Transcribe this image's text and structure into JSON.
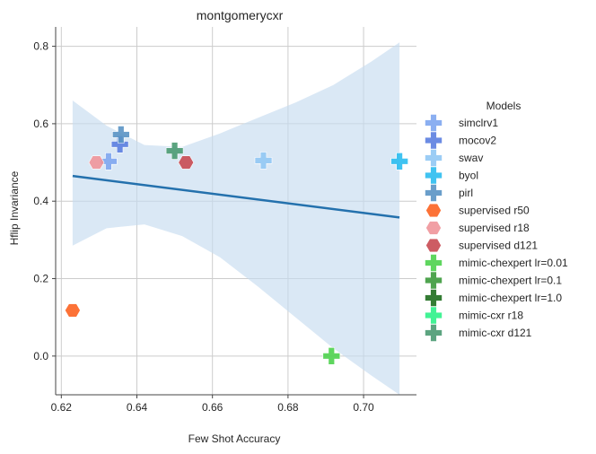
{
  "chart_data": {
    "type": "scatter",
    "title": "montgomerycxr",
    "xlabel": "Few Shot Accuracy",
    "ylabel": "Hflip Invariance",
    "xlim": [
      0.6185,
      0.714
    ],
    "ylim": [
      -0.1,
      0.85
    ],
    "xticks": [
      0.62,
      0.64,
      0.66,
      0.68,
      0.7
    ],
    "xtick_labels": [
      "0.62",
      "0.64",
      "0.66",
      "0.68",
      "0.70"
    ],
    "yticks": [
      0.0,
      0.2,
      0.4,
      0.6,
      0.8
    ],
    "ytick_labels": [
      "0.0",
      "0.2",
      "0.4",
      "0.6",
      "0.8"
    ],
    "grid": true,
    "legend": {
      "title": "Models",
      "placement": "right"
    },
    "regression": {
      "color": "#2471ad",
      "band_color": "#c6dbef",
      "line": [
        [
          0.623,
          0.465
        ],
        [
          0.7095,
          0.358
        ]
      ],
      "band_upper": [
        [
          0.623,
          0.66
        ],
        [
          0.632,
          0.595
        ],
        [
          0.642,
          0.545
        ],
        [
          0.652,
          0.54
        ],
        [
          0.662,
          0.575
        ],
        [
          0.672,
          0.615
        ],
        [
          0.682,
          0.655
        ],
        [
          0.692,
          0.7
        ],
        [
          0.702,
          0.76
        ],
        [
          0.7095,
          0.81
        ]
      ],
      "band_lower": [
        [
          0.623,
          0.285
        ],
        [
          0.632,
          0.33
        ],
        [
          0.642,
          0.34
        ],
        [
          0.652,
          0.31
        ],
        [
          0.662,
          0.255
        ],
        [
          0.672,
          0.18
        ],
        [
          0.682,
          0.1
        ],
        [
          0.692,
          0.02
        ],
        [
          0.702,
          -0.05
        ],
        [
          0.7095,
          -0.1
        ]
      ]
    },
    "series": [
      {
        "name": "simclrv1",
        "marker": "plus",
        "color": "#7ea6f0",
        "points": [
          [
            0.6325,
            0.503
          ]
        ]
      },
      {
        "name": "mocov2",
        "marker": "plus",
        "color": "#5b7ee0",
        "points": [
          [
            0.6355,
            0.547
          ]
        ]
      },
      {
        "name": "swav",
        "marker": "plus",
        "color": "#91c8f4",
        "points": [
          [
            0.6735,
            0.505
          ]
        ]
      },
      {
        "name": "byol",
        "marker": "plus",
        "color": "#2bbcf0",
        "points": [
          [
            0.7095,
            0.503
          ]
        ]
      },
      {
        "name": "pirl",
        "marker": "plus",
        "color": "#5a94c4",
        "points": [
          [
            0.6358,
            0.572
          ]
        ]
      },
      {
        "name": "supervised r50",
        "marker": "hexagon",
        "color": "#fc6321",
        "points": [
          [
            0.623,
            0.118
          ]
        ]
      },
      {
        "name": "supervised r18",
        "marker": "hexagon",
        "color": "#f0959a",
        "points": [
          [
            0.6293,
            0.5
          ]
        ]
      },
      {
        "name": "supervised d121",
        "marker": "hexagon",
        "color": "#c84a52",
        "points": [
          [
            0.653,
            0.5
          ]
        ]
      },
      {
        "name": "mimic-chexpert lr=0.01",
        "marker": "plus",
        "color": "#4ed14e",
        "points": [
          [
            0.6915,
            0.0
          ]
        ]
      },
      {
        "name": "mimic-chexpert lr=0.1",
        "marker": "plus",
        "color": "#3c9a3c",
        "points": []
      },
      {
        "name": "mimic-chexpert lr=1.0",
        "marker": "plus",
        "color": "#1e6e1e",
        "points": []
      },
      {
        "name": "mimic-cxr r18",
        "marker": "plus",
        "color": "#2ef28a",
        "points": []
      },
      {
        "name": "mimic-cxr d121",
        "marker": "plus",
        "color": "#4a9a72",
        "points": [
          [
            0.65,
            0.53
          ]
        ]
      }
    ]
  }
}
